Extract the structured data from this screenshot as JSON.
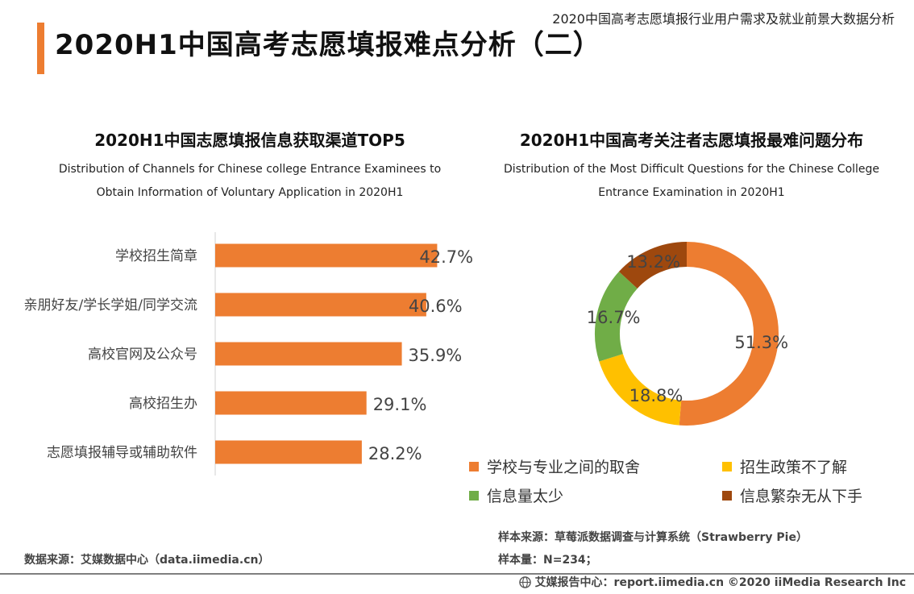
{
  "header": {
    "report_title": "2020中国高考志愿填报行业用户需求及就业前景大数据分析",
    "page_title": "2020H1中国高考志愿填报难点分析（二）"
  },
  "left_chart": {
    "title": "2020H1中国志愿填报信息获取渠道TOP5",
    "subtitle_en_line1": "Distribution of Channels for Chinese college Entrance Examinees to",
    "subtitle_en_line2": "Obtain Information of Voluntary Application in 2020H1"
  },
  "right_chart": {
    "title": "2020H1中国高考关注者志愿填报最难问题分布",
    "subtitle_en_line1": "Distribution of the Most Difficult Questions for the Chinese College",
    "subtitle_en_line2": "Entrance Examination in 2020H1"
  },
  "chart_data": [
    {
      "type": "bar",
      "orientation": "horizontal",
      "title": "2020H1中国志愿填报信息获取渠道TOP5",
      "categories": [
        "学校招生简章",
        "亲朋好友/学长学姐/同学交流",
        "高校官网及公众号",
        "高校招生办",
        "志愿填报辅导或辅助软件"
      ],
      "values": [
        42.7,
        40.6,
        35.9,
        29.1,
        28.2
      ],
      "labels": [
        "42.7%",
        "40.6%",
        "35.9%",
        "29.1%",
        "28.2%"
      ],
      "unit": "%",
      "color": "#ed7d31",
      "xlim": [
        0,
        50
      ]
    },
    {
      "type": "pie",
      "variant": "donut",
      "title": "2020H1中国高考关注者志愿填报最难问题分布",
      "categories": [
        "学校与专业之间的取舍",
        "招生政策不了解",
        "信息量太少",
        "信息繁杂无从下手"
      ],
      "values": [
        51.3,
        18.8,
        16.7,
        13.2
      ],
      "labels": [
        "51.3%",
        "18.8%",
        "16.7%",
        "13.2%"
      ],
      "colors": [
        "#ed7d31",
        "#ffc000",
        "#70ad47",
        "#9e480e"
      ],
      "legend_position": "bottom"
    }
  ],
  "footer": {
    "data_source": "数据来源：艾媒数据中心（data.iimedia.cn）",
    "sample_source": "样本来源：草莓派数据调查与计算系统（Strawberry Pie）",
    "sample_size": "样本量：N=234；",
    "copyright": "艾媒报告中心：report.iimedia.cn  ©2020  iiMedia Research  Inc",
    "copyright_icon": "globe-icon"
  }
}
